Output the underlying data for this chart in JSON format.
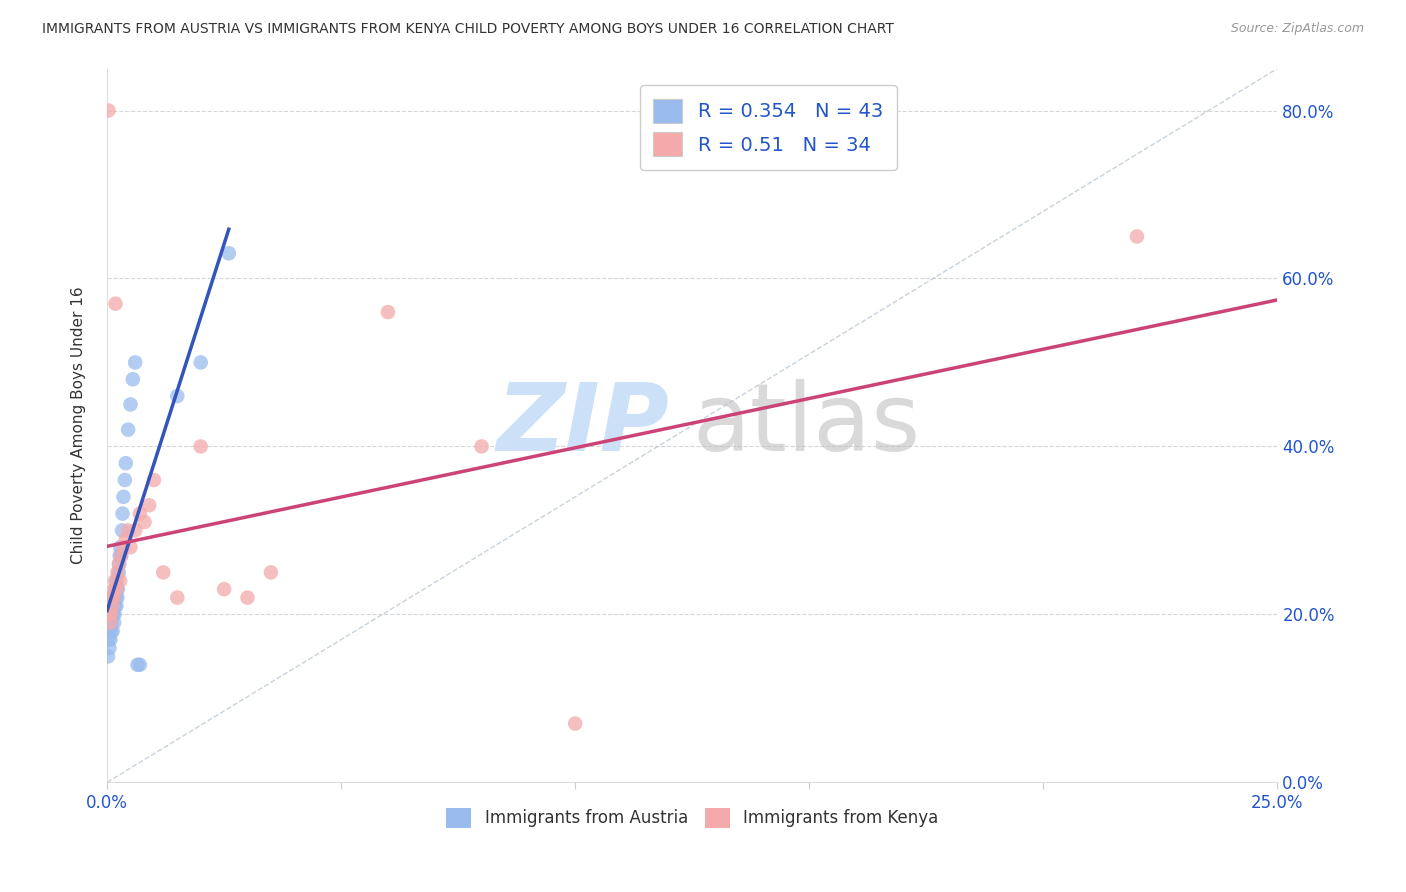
{
  "title": "IMMIGRANTS FROM AUSTRIA VS IMMIGRANTS FROM KENYA CHILD POVERTY AMONG BOYS UNDER 16 CORRELATION CHART",
  "source": "Source: ZipAtlas.com",
  "ylabel": "Child Poverty Among Boys Under 16",
  "xlim": [
    0.0,
    0.25
  ],
  "ylim": [
    0.0,
    0.85
  ],
  "xtick_vals": [
    0.0,
    0.05,
    0.1,
    0.15,
    0.2,
    0.25
  ],
  "ytick_vals": [
    0.0,
    0.2,
    0.4,
    0.6,
    0.8
  ],
  "austria_color": "#99bbee",
  "kenya_color": "#f4aaaa",
  "austria_R": 0.354,
  "austria_N": 43,
  "kenya_R": 0.51,
  "kenya_N": 34,
  "austria_line_color": "#3355bb",
  "kenya_line_color": "#cc4477",
  "watermark_zip": "ZIP",
  "watermark_atlas": "atlas",
  "background_color": "#ffffff",
  "grid_color": "#cccccc",
  "axis_label_color": "#2255cc",
  "title_color": "#333333",
  "source_color": "#999999",
  "austria_scatter_x": [
    0.0002,
    0.0003,
    0.0004,
    0.0005,
    0.0006,
    0.0007,
    0.0008,
    0.0009,
    0.001,
    0.001,
    0.0012,
    0.0013,
    0.0014,
    0.0015,
    0.0015,
    0.0016,
    0.0017,
    0.0018,
    0.0019,
    0.002,
    0.002,
    0.0021,
    0.0022,
    0.0023,
    0.0025,
    0.0026,
    0.0027,
    0.0028,
    0.003,
    0.0032,
    0.0033,
    0.0035,
    0.0038,
    0.004,
    0.0045,
    0.005,
    0.0055,
    0.006,
    0.0065,
    0.007,
    0.015,
    0.02,
    0.026
  ],
  "austria_scatter_y": [
    0.15,
    0.17,
    0.18,
    0.16,
    0.19,
    0.17,
    0.18,
    0.19,
    0.2,
    0.22,
    0.18,
    0.2,
    0.21,
    0.22,
    0.19,
    0.2,
    0.21,
    0.23,
    0.22,
    0.24,
    0.21,
    0.23,
    0.22,
    0.23,
    0.25,
    0.26,
    0.27,
    0.28,
    0.27,
    0.3,
    0.32,
    0.34,
    0.36,
    0.38,
    0.42,
    0.45,
    0.48,
    0.5,
    0.14,
    0.14,
    0.46,
    0.5,
    0.63
  ],
  "kenya_scatter_x": [
    0.0003,
    0.0005,
    0.0007,
    0.0008,
    0.001,
    0.0012,
    0.0014,
    0.0015,
    0.0017,
    0.0018,
    0.002,
    0.0022,
    0.0025,
    0.0028,
    0.003,
    0.0035,
    0.004,
    0.0045,
    0.005,
    0.006,
    0.007,
    0.008,
    0.009,
    0.01,
    0.012,
    0.015,
    0.02,
    0.025,
    0.03,
    0.035,
    0.06,
    0.08,
    0.1,
    0.22
  ],
  "kenya_scatter_y": [
    0.8,
    0.2,
    0.19,
    0.2,
    0.22,
    0.21,
    0.22,
    0.23,
    0.24,
    0.57,
    0.23,
    0.25,
    0.26,
    0.24,
    0.27,
    0.28,
    0.29,
    0.3,
    0.28,
    0.3,
    0.32,
    0.31,
    0.33,
    0.36,
    0.25,
    0.22,
    0.4,
    0.23,
    0.22,
    0.25,
    0.56,
    0.4,
    0.07,
    0.65
  ]
}
